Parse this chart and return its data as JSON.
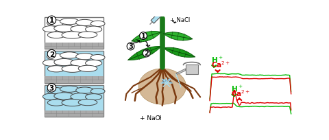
{
  "bg_color": "#ffffff",
  "green_color": "#00bb00",
  "red_color": "#dd0000",
  "stem_color": "#1a7a1a",
  "root_color": "#7B3A10",
  "root_ball_color": "#d4b896",
  "water_color": "#aaddee",
  "cell_stroke": "#444444",
  "box_stroke": "#777777",
  "panel1_bg": "#ffffff",
  "panel2_bg": "#aaddee",
  "panel3_bg": "#aaddee",
  "cell1_fill": "#ffffff",
  "cell2_fill": "#ffffff",
  "cell3_fill": "#aaddee",
  "grid_color": "#aaaaaa",
  "syringe_body": "#aaddee",
  "syringe_outline": "#555555",
  "watering_can_color": "#cccccc"
}
